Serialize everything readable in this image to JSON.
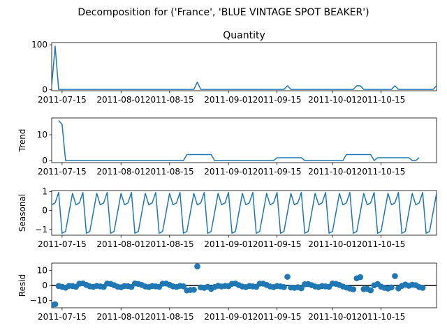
{
  "suptitle": "Decomposition for ('France', 'BLUE VINTAGE SPOT BEAKER')",
  "chart_data": [
    {
      "type": "line",
      "title": "Quantity",
      "ylabel": "",
      "ylim": [
        -2,
        105
      ],
      "yticks": [
        0,
        100
      ],
      "xlim": [
        "2011-07-12",
        "2011-10-31"
      ],
      "xtick_labels": [
        "2011-07-15",
        "2011-08-01",
        "2011-08-15",
        "2011-09-01",
        "2011-09-15",
        "2011-10-01",
        "2011-10-15"
      ],
      "series": [
        {
          "points": [
            [
              "2011-07-12",
              10
            ],
            [
              "2011-07-13",
              97
            ],
            [
              "2011-07-14",
              1
            ],
            [
              "2011-08-22",
              1
            ],
            [
              "2011-08-23",
              17
            ],
            [
              "2011-08-24",
              1
            ],
            [
              "2011-09-17",
              1
            ],
            [
              "2011-09-18",
              9
            ],
            [
              "2011-09-19",
              1
            ],
            [
              "2011-10-07",
              1
            ],
            [
              "2011-10-08",
              9
            ],
            [
              "2011-10-09",
              9
            ],
            [
              "2011-10-10",
              1
            ],
            [
              "2011-10-18",
              1
            ],
            [
              "2011-10-19",
              9
            ],
            [
              "2011-10-20",
              1
            ],
            [
              "2011-10-30",
              1
            ],
            [
              "2011-10-31",
              9
            ]
          ]
        }
      ]
    },
    {
      "type": "line",
      "title": "",
      "ylabel": "Trend",
      "ylim": [
        -0.8,
        16.5
      ],
      "yticks": [
        0,
        10
      ],
      "xlim": [
        "2011-07-12",
        "2011-10-31"
      ],
      "xtick_labels": [
        "2011-07-15",
        "2011-08-01",
        "2011-08-15",
        "2011-09-01",
        "2011-09-15",
        "2011-10-01",
        "2011-10-15"
      ],
      "series": [
        {
          "points": [
            [
              "2011-07-14",
              15.5
            ],
            [
              "2011-07-15",
              14
            ],
            [
              "2011-07-16",
              0
            ],
            [
              "2011-08-19",
              0
            ],
            [
              "2011-08-20",
              2.3
            ],
            [
              "2011-08-27",
              2.3
            ],
            [
              "2011-08-28",
              0
            ],
            [
              "2011-09-14",
              0
            ],
            [
              "2011-09-15",
              1.1
            ],
            [
              "2011-09-22",
              1.1
            ],
            [
              "2011-09-23",
              0
            ],
            [
              "2011-10-04",
              0
            ],
            [
              "2011-10-05",
              2.3
            ],
            [
              "2011-10-12",
              2.3
            ],
            [
              "2011-10-13",
              0
            ],
            [
              "2011-10-14",
              1.1
            ],
            [
              "2011-10-23",
              1.1
            ],
            [
              "2011-10-24",
              0
            ],
            [
              "2011-10-25",
              0
            ],
            [
              "2011-10-26",
              1.1
            ]
          ]
        }
      ]
    },
    {
      "type": "line",
      "title": "",
      "ylabel": "Seasonal",
      "ylim": [
        -1.3,
        1.05
      ],
      "yticks": [
        -1,
        0,
        1
      ],
      "xlim": [
        "2011-07-12",
        "2011-10-31"
      ],
      "xtick_labels": [
        "2011-07-15",
        "2011-08-01",
        "2011-08-15",
        "2011-09-01",
        "2011-09-15",
        "2011-10-01",
        "2011-10-15"
      ],
      "period_days": 7,
      "start": "2011-07-12",
      "end": "2011-10-31",
      "pattern": [
        0.3,
        0.4,
        0.95,
        -1.2,
        -1.1,
        -0.1,
        0.9
      ]
    },
    {
      "type": "scatter",
      "title": "",
      "ylabel": "Resid",
      "ylim": [
        -15,
        15
      ],
      "yticks": [
        -10,
        0,
        10
      ],
      "xlim": [
        "2011-07-12",
        "2011-10-31"
      ],
      "xtick_labels": [
        "2011-07-15",
        "2011-08-01",
        "2011-08-15",
        "2011-09-01",
        "2011-09-15",
        "2011-10-01",
        "2011-10-15"
      ],
      "baseline": 0,
      "points": [
        [
          "2011-07-12",
          -13.2
        ],
        [
          "2011-07-13",
          -12.6
        ],
        [
          "2011-07-14",
          -0.4
        ],
        [
          "2011-07-15",
          -0.9
        ],
        [
          "2011-07-16",
          -1.5
        ],
        [
          "2011-07-17",
          -0.3
        ],
        [
          "2011-07-18",
          -0.4
        ],
        [
          "2011-07-19",
          -0.9
        ],
        [
          "2011-07-20",
          1.2
        ],
        [
          "2011-07-21",
          1.4
        ],
        [
          "2011-07-22",
          0.3
        ],
        [
          "2011-07-23",
          -0.6
        ],
        [
          "2011-07-24",
          -0.9
        ],
        [
          "2011-07-25",
          -0.3
        ],
        [
          "2011-07-26",
          -0.6
        ],
        [
          "2011-07-27",
          -1.0
        ],
        [
          "2011-07-28",
          1.3
        ],
        [
          "2011-07-29",
          1.1
        ],
        [
          "2011-07-30",
          0.2
        ],
        [
          "2011-07-31",
          -0.8
        ],
        [
          "2011-08-01",
          -1.2
        ],
        [
          "2011-08-02",
          -0.4
        ],
        [
          "2011-08-03",
          -0.5
        ],
        [
          "2011-08-04",
          -1.0
        ],
        [
          "2011-08-05",
          1.3
        ],
        [
          "2011-08-06",
          1.0
        ],
        [
          "2011-08-07",
          0.3
        ],
        [
          "2011-08-08",
          -0.7
        ],
        [
          "2011-08-09",
          -1.1
        ],
        [
          "2011-08-10",
          -0.4
        ],
        [
          "2011-08-11",
          -0.6
        ],
        [
          "2011-08-12",
          -0.9
        ],
        [
          "2011-08-13",
          1.2
        ],
        [
          "2011-08-14",
          1.3
        ],
        [
          "2011-08-15",
          0.4
        ],
        [
          "2011-08-16",
          -0.6
        ],
        [
          "2011-08-17",
          -1.0
        ],
        [
          "2011-08-18",
          -0.3
        ],
        [
          "2011-08-19",
          -0.6
        ],
        [
          "2011-08-20",
          -3.4
        ],
        [
          "2011-08-21",
          -3.0
        ],
        [
          "2011-08-22",
          -2.9
        ],
        [
          "2011-08-23",
          12.8
        ],
        [
          "2011-08-24",
          -1.3
        ],
        [
          "2011-08-25",
          -1.6
        ],
        [
          "2011-08-26",
          -0.9
        ],
        [
          "2011-08-27",
          -2.3
        ],
        [
          "2011-08-28",
          -1.0
        ],
        [
          "2011-08-29",
          -0.2
        ],
        [
          "2011-08-30",
          -0.7
        ],
        [
          "2011-08-31",
          -0.3
        ],
        [
          "2011-09-01",
          -0.5
        ],
        [
          "2011-09-02",
          1.1
        ],
        [
          "2011-09-03",
          1.3
        ],
        [
          "2011-09-04",
          0.2
        ],
        [
          "2011-09-05",
          -0.7
        ],
        [
          "2011-09-06",
          -1.1
        ],
        [
          "2011-09-07",
          -0.4
        ],
        [
          "2011-09-08",
          -0.6
        ],
        [
          "2011-09-09",
          -0.9
        ],
        [
          "2011-09-10",
          1.2
        ],
        [
          "2011-09-11",
          1.2
        ],
        [
          "2011-09-12",
          0.3
        ],
        [
          "2011-09-13",
          -0.7
        ],
        [
          "2011-09-14",
          -1.1
        ],
        [
          "2011-09-15",
          -0.4
        ],
        [
          "2011-09-16",
          -0.6
        ],
        [
          "2011-09-17",
          -1.1
        ],
        [
          "2011-09-18",
          5.8
        ],
        [
          "2011-09-19",
          -1.4
        ],
        [
          "2011-09-20",
          -1.6
        ],
        [
          "2011-09-21",
          -1.2
        ],
        [
          "2011-09-22",
          -1.9
        ],
        [
          "2011-09-23",
          0.8
        ],
        [
          "2011-09-24",
          0.9
        ],
        [
          "2011-09-25",
          0.2
        ],
        [
          "2011-09-26",
          -0.7
        ],
        [
          "2011-09-27",
          -1.1
        ],
        [
          "2011-09-28",
          -0.4
        ],
        [
          "2011-09-29",
          -0.6
        ],
        [
          "2011-09-30",
          -0.9
        ],
        [
          "2011-10-01",
          1.3
        ],
        [
          "2011-10-02",
          1.1
        ],
        [
          "2011-10-03",
          0.3
        ],
        [
          "2011-10-04",
          -0.7
        ],
        [
          "2011-10-05",
          -1.4
        ],
        [
          "2011-10-06",
          -2.1
        ],
        [
          "2011-10-07",
          -2.6
        ],
        [
          "2011-10-08",
          4.8
        ],
        [
          "2011-10-09",
          5.6
        ],
        [
          "2011-10-10",
          -2.5
        ],
        [
          "2011-10-11",
          -2.2
        ],
        [
          "2011-10-12",
          -3.3
        ],
        [
          "2011-10-13",
          0.1
        ],
        [
          "2011-10-14",
          1.0
        ],
        [
          "2011-10-15",
          -0.8
        ],
        [
          "2011-10-16",
          -1.6
        ],
        [
          "2011-10-17",
          -2.1
        ],
        [
          "2011-10-18",
          -1.3
        ],
        [
          "2011-10-19",
          6.3
        ],
        [
          "2011-10-20",
          -2.0
        ],
        [
          "2011-10-21",
          -0.3
        ],
        [
          "2011-10-22",
          0.6
        ],
        [
          "2011-10-23",
          -0.2
        ],
        [
          "2011-10-24",
          0.5
        ],
        [
          "2011-10-25",
          0.2
        ],
        [
          "2011-10-26",
          -1.1
        ],
        [
          "2011-10-27",
          -1.6
        ]
      ]
    }
  ]
}
